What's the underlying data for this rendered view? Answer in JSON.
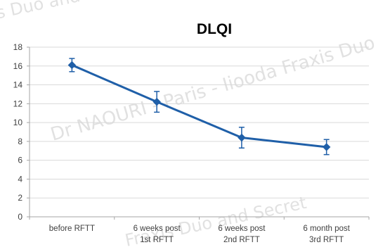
{
  "chart_data": {
    "type": "line",
    "title": "DLQI",
    "xlabel": "",
    "ylabel": "",
    "ylim": [
      0,
      18
    ],
    "yticks": [
      0,
      2,
      4,
      6,
      8,
      10,
      12,
      14,
      16,
      18
    ],
    "grid": "horizontal",
    "legend": "none",
    "categories": [
      [
        "before RFTT"
      ],
      [
        "6 weeks post",
        "1st RFTT"
      ],
      [
        "6 weeks post",
        "2nd RFTT"
      ],
      [
        "6 month post",
        "3rd RFTT"
      ]
    ],
    "series": [
      {
        "values": [
          16.1,
          12.2,
          8.4,
          7.4
        ],
        "error": [
          0.7,
          1.1,
          1.1,
          0.8
        ],
        "color": "#1f5fa8"
      }
    ]
  },
  "watermarks": [
    "is Duo and",
    "Dr NAOURI - Paris - Iiooda Fraxis Duo",
    "Fraxis Duo and Secret"
  ]
}
